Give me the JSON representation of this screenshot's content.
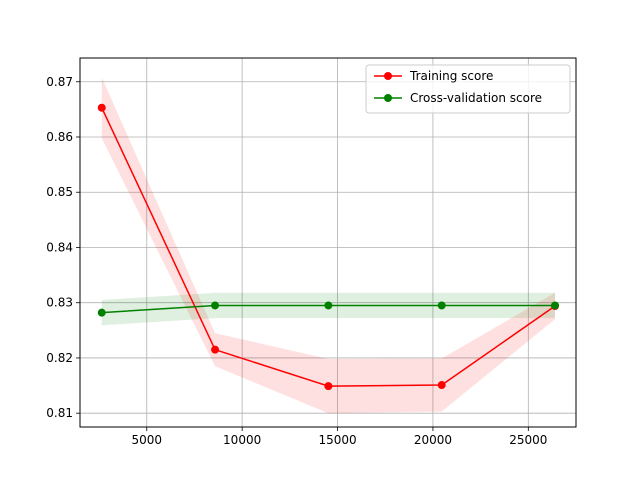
{
  "chart_data": {
    "type": "line",
    "title": "",
    "xlabel": "",
    "ylabel": "",
    "xlim": [
      1500,
      27500
    ],
    "ylim": [
      0.8075,
      0.8743
    ],
    "xticks": [
      5000,
      10000,
      15000,
      20000,
      25000
    ],
    "yticks": [
      0.81,
      0.82,
      0.83,
      0.84,
      0.85,
      0.86,
      0.87
    ],
    "grid": true,
    "legend_position": "top-right",
    "series": [
      {
        "name": "Training score",
        "color": "#ff0000",
        "x": [
          2640,
          8580,
          14520,
          20460,
          26400
        ],
        "y": [
          0.8653,
          0.8215,
          0.8149,
          0.8151,
          0.8294
        ],
        "band_lower": [
          0.8598,
          0.8185,
          0.81,
          0.8103,
          0.827
        ],
        "band_upper": [
          0.8708,
          0.8245,
          0.8198,
          0.8199,
          0.8318
        ]
      },
      {
        "name": "Cross-validation score",
        "color": "#008000",
        "x": [
          2640,
          8580,
          14520,
          20460,
          26400
        ],
        "y": [
          0.8282,
          0.8295,
          0.8295,
          0.8295,
          0.8295
        ],
        "band_lower": [
          0.8259,
          0.8272,
          0.8272,
          0.8272,
          0.8272
        ],
        "band_upper": [
          0.8305,
          0.8318,
          0.8318,
          0.8318,
          0.8318
        ]
      }
    ]
  }
}
